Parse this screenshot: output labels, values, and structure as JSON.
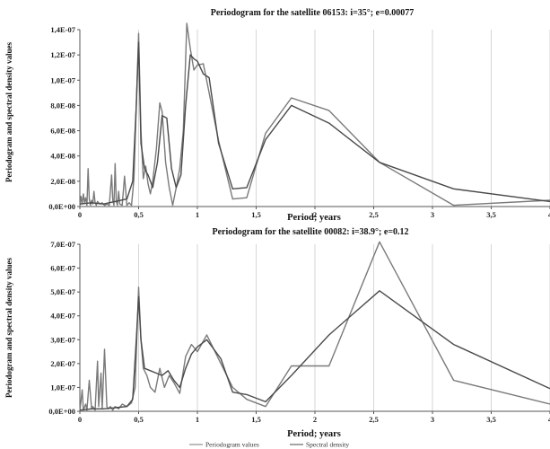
{
  "chart_data": [
    {
      "type": "line",
      "title": "Periodogram for the satellite 06153: i=35°; e=0.00077",
      "xlabel": "Period; years",
      "ylabel": "Periodogram and spectral density values",
      "xlim": [
        0,
        4
      ],
      "ylim": [
        0,
        1.4e-07
      ],
      "x_ticks": [
        0,
        0.5,
        1,
        1.5,
        2,
        2.5,
        3,
        3.5,
        4
      ],
      "x_tick_labels": [
        "0",
        "0,5",
        "1",
        "1,5",
        "2",
        "2,5",
        "3",
        "3,5",
        "4"
      ],
      "y_ticks": [
        0,
        2e-08,
        4e-08,
        6e-08,
        8e-08,
        1e-07,
        1.2e-07,
        1.4e-07
      ],
      "y_tick_labels": [
        "0,0E+00",
        "2,0E-08",
        "4,0E-08",
        "6,0E-08",
        "8,0E-08",
        "1,0E-07",
        "1,2E-07",
        "1,4E-07"
      ],
      "grid": "vertical",
      "series": [
        {
          "name": "Periodogram values",
          "color": "#7a7a7a",
          "x": [
            0,
            0.01,
            0.02,
            0.03,
            0.04,
            0.05,
            0.06,
            0.07,
            0.08,
            0.09,
            0.1,
            0.11,
            0.12,
            0.13,
            0.14,
            0.15,
            0.17,
            0.19,
            0.21,
            0.23,
            0.25,
            0.27,
            0.28,
            0.29,
            0.3,
            0.31,
            0.32,
            0.33,
            0.34,
            0.36,
            0.38,
            0.4,
            0.42,
            0.44,
            0.46,
            0.48,
            0.5,
            0.52,
            0.54,
            0.56,
            0.58,
            0.6,
            0.62,
            0.65,
            0.68,
            0.7,
            0.73,
            0.76,
            0.79,
            0.82,
            0.85,
            0.88,
            0.91,
            0.94,
            0.97,
            1.0,
            1.05,
            1.1,
            1.18,
            1.3,
            1.42,
            1.58,
            1.8,
            2.12,
            2.55,
            3.18,
            4.0
          ],
          "y": [
            0,
            8e-09,
            2e-09,
            1e-08,
            3e-09,
            7e-09,
            1e-09,
            3e-08,
            6e-09,
            1e-09,
            5e-09,
            2e-09,
            1.2e-08,
            3e-09,
            1e-09,
            4e-09,
            2e-09,
            3e-09,
            1e-09,
            2e-09,
            1e-09,
            2.5e-08,
            5e-09,
            1e-09,
            3.4e-08,
            4e-09,
            1e-09,
            1.2e-08,
            2e-09,
            1e-09,
            2.4e-08,
            1e-09,
            3e-09,
            1e-09,
            2.2e-08,
            8e-08,
            1.37e-07,
            6e-08,
            2.2e-08,
            3.2e-08,
            1.8e-08,
            1e-08,
            2e-08,
            4.5e-08,
            8.2e-08,
            7.5e-08,
            3.5e-08,
            1.5e-08,
            1e-09,
            1.5e-08,
            3e-08,
            6e-08,
            1.45e-07,
            1.25e-07,
            1.08e-07,
            1.12e-07,
            1.13e-07,
            9e-08,
            5.2e-08,
            6e-09,
            7e-09,
            5.8e-08,
            8.6e-08,
            7.6e-08,
            3.5e-08,
            1e-09,
            5e-09
          ]
        },
        {
          "name": "Spectral density",
          "color": "#4a4a4a",
          "x": [
            0,
            0.1,
            0.2,
            0.3,
            0.4,
            0.45,
            0.48,
            0.5,
            0.52,
            0.55,
            0.58,
            0.62,
            0.66,
            0.7,
            0.74,
            0.78,
            0.82,
            0.86,
            0.9,
            0.94,
            0.97,
            1.0,
            1.05,
            1.1,
            1.18,
            1.3,
            1.42,
            1.58,
            1.8,
            2.12,
            2.55,
            3.18,
            4.0
          ],
          "y": [
            2e-09,
            3e-09,
            2e-09,
            4e-09,
            6e-09,
            2e-08,
            8e-08,
            1.3e-07,
            5e-08,
            3e-08,
            2.5e-08,
            1.5e-08,
            3.5e-08,
            7.2e-08,
            7e-08,
            3e-08,
            1.5e-08,
            2.5e-08,
            8e-08,
            1.2e-07,
            1.17e-07,
            1.15e-07,
            1.05e-07,
            1.02e-07,
            5e-08,
            1.4e-08,
            1.5e-08,
            5.3e-08,
            8e-08,
            6.6e-08,
            3.5e-08,
            1.4e-08,
            4e-09
          ]
        }
      ]
    },
    {
      "type": "line",
      "title": "Periodogram for the satellite 00082: i=38.9°; e=0.12",
      "xlabel": "Period; years",
      "ylabel": "Periodogram and spectral density values",
      "xlim": [
        0,
        4
      ],
      "ylim": [
        0,
        7e-07
      ],
      "x_ticks": [
        0,
        0.5,
        1,
        1.5,
        2,
        2.5,
        3,
        3.5,
        4
      ],
      "x_tick_labels": [
        "0",
        "0,5",
        "1",
        "1,5",
        "2",
        "2,5",
        "3",
        "3,5",
        "4"
      ],
      "y_ticks": [
        0,
        1e-07,
        2e-07,
        3e-07,
        4e-07,
        5e-07,
        6e-07,
        7e-07
      ],
      "y_tick_labels": [
        "0,0E+00",
        "1,0E-07",
        "2,0E-07",
        "3,0E-07",
        "4,0E-07",
        "5,0E-07",
        "6,0E-07",
        "7,0E-07"
      ],
      "grid": "vertical",
      "legend": "bottom",
      "series": [
        {
          "name": "Periodogram values",
          "color": "#7a7a7a",
          "x": [
            0,
            0.02,
            0.03,
            0.05,
            0.06,
            0.08,
            0.1,
            0.11,
            0.13,
            0.15,
            0.16,
            0.18,
            0.19,
            0.21,
            0.23,
            0.24,
            0.26,
            0.28,
            0.3,
            0.33,
            0.36,
            0.4,
            0.44,
            0.47,
            0.5,
            0.52,
            0.54,
            0.57,
            0.6,
            0.64,
            0.68,
            0.72,
            0.76,
            0.8,
            0.85,
            0.9,
            0.95,
            1.0,
            1.08,
            1.2,
            1.3,
            1.42,
            1.58,
            1.8,
            2.12,
            2.55,
            3.18,
            4.0
          ],
          "y": [
            0,
            9e-08,
            5e-09,
            3e-08,
            5e-09,
            1.3e-07,
            1e-08,
            2e-08,
            5e-09,
            2.1e-07,
            2e-08,
            1.6e-07,
            1e-08,
            2.6e-07,
            2e-08,
            1e-08,
            2e-08,
            5e-09,
            2e-08,
            1e-08,
            3e-08,
            2e-08,
            3.5e-08,
            1e-07,
            5.2e-07,
            3e-07,
            1.8e-07,
            1.5e-07,
            1e-07,
            8e-08,
            1.8e-07,
            1e-07,
            1.5e-07,
            1.2e-07,
            7.5e-08,
            2.3e-07,
            2.8e-07,
            2.5e-07,
            3.2e-07,
            2e-07,
            1e-07,
            5e-08,
            2e-08,
            1.9e-07,
            1.9e-07,
            7.1e-07,
            1.3e-07,
            3e-08
          ]
        },
        {
          "name": "Spectral density",
          "color": "#4a4a4a",
          "x": [
            0,
            0.1,
            0.2,
            0.3,
            0.4,
            0.45,
            0.48,
            0.5,
            0.52,
            0.55,
            0.6,
            0.65,
            0.7,
            0.75,
            0.8,
            0.85,
            0.9,
            0.95,
            1.0,
            1.08,
            1.2,
            1.3,
            1.42,
            1.58,
            1.8,
            2.12,
            2.55,
            3.18,
            4.0
          ],
          "y": [
            5e-09,
            1e-08,
            1e-08,
            1.5e-08,
            2e-08,
            5e-08,
            3e-07,
            4.8e-07,
            3e-07,
            1.8e-07,
            1.7e-07,
            1.6e-07,
            1.5e-07,
            1.7e-07,
            1.3e-07,
            1e-07,
            1.8e-07,
            2.4e-07,
            2.7e-07,
            3e-07,
            2.2e-07,
            8e-08,
            7e-08,
            4e-08,
            1.5e-07,
            3.2e-07,
            5.05e-07,
            2.8e-07,
            9.5e-08
          ]
        }
      ]
    }
  ]
}
